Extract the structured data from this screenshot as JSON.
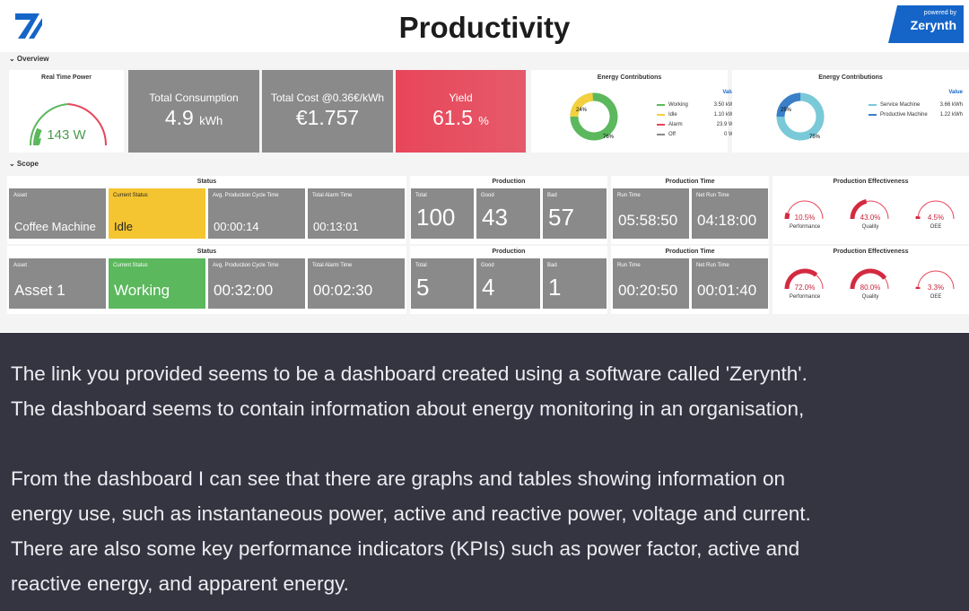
{
  "header": {
    "title": "Productivity",
    "brand_sub": "powered by",
    "brand_name": "Zerynth"
  },
  "overview": {
    "label": "⌄ Overview",
    "real_time_power": {
      "title": "Real Time Power",
      "value": "143 W"
    },
    "total_consumption": {
      "label": "Total Consumption",
      "value": "4.9",
      "unit": "kWh"
    },
    "total_cost": {
      "label": "Total Cost @0.36€/kWh",
      "value": "€1.757"
    },
    "yield": {
      "label": "Yield",
      "value": "61.5",
      "unit": "%"
    },
    "energy_contrib_1": {
      "title": "Energy Contributions",
      "value_header": "Value",
      "pct_a": "24%",
      "pct_b": "76%",
      "items": [
        {
          "name": "Working",
          "value": "3.50 kWh",
          "color": "#5bb85d"
        },
        {
          "name": "Idle",
          "value": "1.10 kWh",
          "color": "#f4d03f"
        },
        {
          "name": "Alarm",
          "value": "23.9 Wh",
          "color": "#e8465a"
        },
        {
          "name": "Off",
          "value": "0 Wh",
          "color": "#8a8a8a"
        }
      ]
    },
    "energy_contrib_2": {
      "title": "Energy Contributions",
      "value_header": "Value",
      "pct_a": "25%",
      "pct_b": "75%",
      "items": [
        {
          "name": "Service Machine",
          "value": "3.66 kWh",
          "color": "#79c9d8"
        },
        {
          "name": "Productive Machine",
          "value": "1.22 kWh",
          "color": "#3a7fc8"
        }
      ]
    }
  },
  "scope": {
    "label": "⌄ Scope",
    "rows": [
      {
        "status_title": "Status",
        "asset_label": "Asset",
        "asset": "Coffee Machine",
        "current_status_label": "Current Status",
        "current_status": "Idle",
        "cycle_label": "Avg. Production Cycle Time",
        "cycle": "00:00:14",
        "alarm_label": "Total Alarm Time",
        "alarm": "00:13:01",
        "production_title": "Production",
        "total_label": "Total",
        "total": "100",
        "good_label": "Good",
        "good": "43",
        "bad_label": "Bad",
        "bad": "57",
        "ptime_title": "Production Time",
        "run_label": "Run Time",
        "run": "05:58:50",
        "net_label": "Net Run Time",
        "net": "04:18:00",
        "eff_title": "Production Effectiveness",
        "performance": "10.5%",
        "performance_label": "Performance",
        "performance_frac": 0.105,
        "quality": "43.0%",
        "quality_label": "Quality",
        "quality_frac": 0.43,
        "oee": "4.5%",
        "oee_label": "OEE",
        "oee_frac": 0.045
      },
      {
        "status_title": "Status",
        "asset_label": "Asset",
        "asset": "Asset 1",
        "current_status_label": "Current Status",
        "current_status": "Working",
        "cycle_label": "Avg. Production Cycle Time",
        "cycle": "00:32:00",
        "alarm_label": "Total Alarm Time",
        "alarm": "00:02:30",
        "production_title": "Production",
        "total_label": "Total",
        "total": "5",
        "good_label": "Good",
        "good": "4",
        "bad_label": "Bad",
        "bad": "1",
        "ptime_title": "Production Time",
        "run_label": "Run Time",
        "run": "00:20:50",
        "net_label": "Net Run Time",
        "net": "00:01:40",
        "eff_title": "Production Effectiveness",
        "performance": "72.0%",
        "performance_label": "Performance",
        "performance_frac": 0.72,
        "quality": "80.0%",
        "quality_label": "Quality",
        "quality_frac": 0.8,
        "oee": "3.3%",
        "oee_label": "OEE",
        "oee_frac": 0.033
      }
    ]
  },
  "chat": {
    "p1_line1": "The link you provided seems to be a dashboard created using a software called 'Zerynth'.",
    "p1_line2": "The dashboard seems to contain information about energy monitoring in an organisation,",
    "p2_line1": "From the dashboard I can see that there are graphs and tables showing information on",
    "p2_line2": "energy use, such as instantaneous power, active and reactive power, voltage and current.",
    "p2_line3": "There are also some key performance indicators (KPIs) such as power factor, active and",
    "p2_line4": "reactive energy, and apparent energy."
  }
}
